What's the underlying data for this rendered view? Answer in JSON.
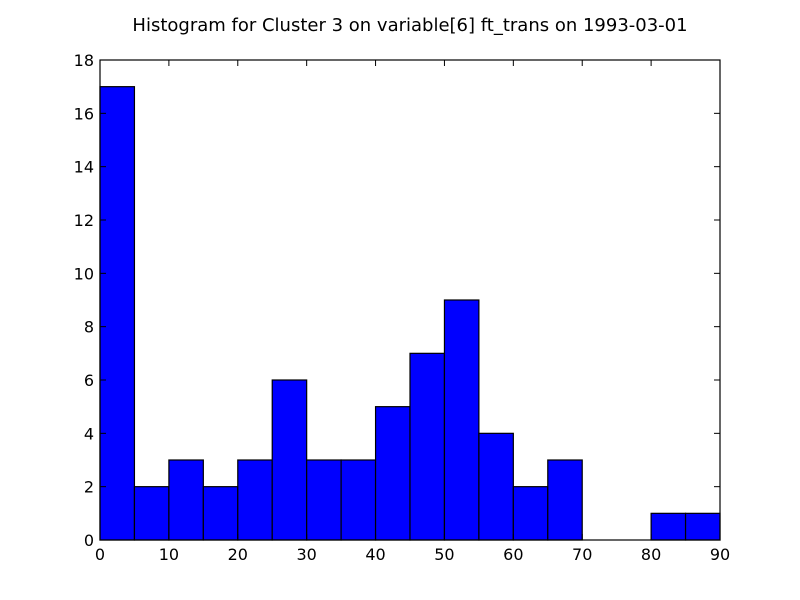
{
  "chart_data": {
    "type": "bar",
    "title": "Histogram for Cluster 3 on variable[6] ft_trans on 1993-03-01",
    "xlabel": "",
    "ylabel": "",
    "xlim": [
      0,
      90
    ],
    "ylim": [
      0,
      18
    ],
    "bin_width": 5,
    "bins": [
      {
        "x0": 0,
        "x1": 5,
        "count": 17
      },
      {
        "x0": 5,
        "x1": 10,
        "count": 2
      },
      {
        "x0": 10,
        "x1": 15,
        "count": 3
      },
      {
        "x0": 15,
        "x1": 20,
        "count": 2
      },
      {
        "x0": 20,
        "x1": 25,
        "count": 3
      },
      {
        "x0": 25,
        "x1": 30,
        "count": 6
      },
      {
        "x0": 30,
        "x1": 35,
        "count": 3
      },
      {
        "x0": 35,
        "x1": 40,
        "count": 3
      },
      {
        "x0": 40,
        "x1": 45,
        "count": 5
      },
      {
        "x0": 45,
        "x1": 50,
        "count": 7
      },
      {
        "x0": 50,
        "x1": 55,
        "count": 9
      },
      {
        "x0": 55,
        "x1": 60,
        "count": 4
      },
      {
        "x0": 60,
        "x1": 65,
        "count": 2
      },
      {
        "x0": 65,
        "x1": 70,
        "count": 3
      },
      {
        "x0": 70,
        "x1": 75,
        "count": 0
      },
      {
        "x0": 75,
        "x1": 80,
        "count": 0
      },
      {
        "x0": 80,
        "x1": 85,
        "count": 1
      },
      {
        "x0": 85,
        "x1": 90,
        "count": 1
      }
    ],
    "x_ticks": [
      0,
      10,
      20,
      30,
      40,
      50,
      60,
      70,
      80,
      90
    ],
    "y_ticks": [
      0,
      2,
      4,
      6,
      8,
      10,
      12,
      14,
      16,
      18
    ],
    "bar_color": "#0000ff",
    "grid": false
  }
}
